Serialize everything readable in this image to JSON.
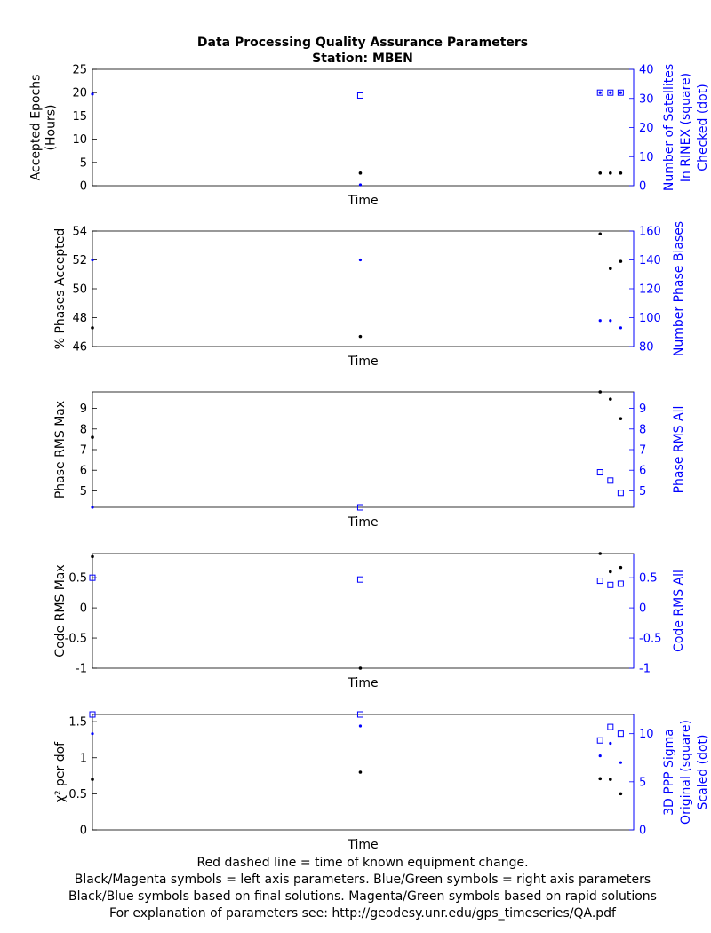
{
  "title_line1": "Data Processing Quality Assurance Parameters",
  "title_line2": "Station: MBEN",
  "colors": {
    "left": "#000000",
    "right": "#0000ff",
    "axis": "#000000"
  },
  "footer": [
    "Red dashed line = time of known equipment change.",
    "Black/Magenta symbols = left axis parameters. Blue/Green symbols = right axis parameters",
    "Black/Blue symbols based on final solutions.  Magenta/Green symbols based on rapid solutions",
    "For explanation of parameters see: http://geodesy.unr.edu/gps_timeseries/QA.pdf"
  ],
  "chart_data": [
    {
      "type": "scatter",
      "xlabel": "Time",
      "xlim": [
        0,
        100
      ],
      "left": {
        "label": [
          "Accepted Epochs",
          "(Hours)"
        ],
        "ylim": [
          0,
          25
        ],
        "ticks": [
          0,
          5,
          10,
          15,
          20,
          25
        ],
        "ticklabels": [
          "0",
          "5",
          "10",
          "15",
          "20",
          "25"
        ],
        "points": [
          {
            "x": 49.5,
            "y": 2.7
          },
          {
            "x": 93.8,
            "y": 2.7
          },
          {
            "x": 95.7,
            "y": 2.7
          },
          {
            "x": 97.6,
            "y": 2.7
          }
        ]
      },
      "right": {
        "label": [
          "Number of Satellites",
          "In RINEX (square)",
          "Checked (dot)"
        ],
        "ylim": [
          0,
          40
        ],
        "ticks": [
          0,
          10,
          20,
          30,
          40
        ],
        "ticklabels": [
          "0",
          "10",
          "20",
          "30",
          "40"
        ],
        "squares": [
          {
            "x": 49.5,
            "y": 31
          },
          {
            "x": 93.8,
            "y": 32
          },
          {
            "x": 95.7,
            "y": 32
          },
          {
            "x": 97.6,
            "y": 32
          }
        ],
        "dots": [
          {
            "x": 0,
            "y": 31.5
          },
          {
            "x": 49.5,
            "y": 0.3
          },
          {
            "x": 93.8,
            "y": 32
          },
          {
            "x": 95.7,
            "y": 32
          },
          {
            "x": 97.6,
            "y": 32
          }
        ]
      }
    },
    {
      "type": "scatter",
      "xlabel": "Time",
      "xlim": [
        0,
        100
      ],
      "left": {
        "label": [
          "% Phases Accepted"
        ],
        "ylim": [
          46,
          54
        ],
        "ticks": [
          46,
          48,
          50,
          52,
          54
        ],
        "ticklabels": [
          "46",
          "48",
          "50",
          "52",
          "54"
        ],
        "points": [
          {
            "x": 0,
            "y": 47.3
          },
          {
            "x": 49.5,
            "y": 46.7
          },
          {
            "x": 93.8,
            "y": 53.8
          },
          {
            "x": 95.7,
            "y": 51.4
          },
          {
            "x": 97.6,
            "y": 51.9
          }
        ]
      },
      "right": {
        "label": [
          "Number Phase Biases"
        ],
        "ylim": [
          80,
          160
        ],
        "ticks": [
          80,
          100,
          120,
          140,
          160
        ],
        "ticklabels": [
          "80",
          "100",
          "120",
          "140",
          "160"
        ],
        "squares": [],
        "dots": [
          {
            "x": 0,
            "y": 140
          },
          {
            "x": 49.5,
            "y": 140
          },
          {
            "x": 93.8,
            "y": 98
          },
          {
            "x": 95.7,
            "y": 98
          },
          {
            "x": 97.6,
            "y": 93
          }
        ]
      }
    },
    {
      "type": "scatter",
      "xlabel": "Time",
      "xlim": [
        0,
        100
      ],
      "left": {
        "label": [
          "Phase RMS Max"
        ],
        "ylim": [
          4.2,
          9.8
        ],
        "ticks": [
          5,
          6,
          7,
          8,
          9
        ],
        "ticklabels": [
          "5",
          "6",
          "7",
          "8",
          "9"
        ],
        "points": [
          {
            "x": 0,
            "y": 7.6
          },
          {
            "x": 93.8,
            "y": 9.8
          },
          {
            "x": 95.7,
            "y": 9.45
          },
          {
            "x": 97.6,
            "y": 8.5
          }
        ]
      },
      "right": {
        "label": [
          "Phase RMS All"
        ],
        "ylim": [
          4.2,
          9.8
        ],
        "ticks": [
          5,
          6,
          7,
          8,
          9
        ],
        "ticklabels": [
          "5",
          "6",
          "7",
          "8",
          "9"
        ],
        "squares": [
          {
            "x": 49.5,
            "y": 4.2
          },
          {
            "x": 93.8,
            "y": 5.9
          },
          {
            "x": 95.7,
            "y": 5.5
          },
          {
            "x": 97.6,
            "y": 4.9
          }
        ],
        "dots": [
          {
            "x": 0,
            "y": 4.2
          }
        ]
      }
    },
    {
      "type": "scatter",
      "xlabel": "Time",
      "xlim": [
        0,
        100
      ],
      "left": {
        "label": [
          "Code RMS Max"
        ],
        "ylim": [
          -1,
          0.9
        ],
        "ticks": [
          -1,
          -0.5,
          0,
          0.5
        ],
        "ticklabels": [
          "-1",
          "-0.5",
          "0",
          "0.5"
        ],
        "points": [
          {
            "x": 0,
            "y": 0.85
          },
          {
            "x": 49.5,
            "y": -1
          },
          {
            "x": 93.8,
            "y": 0.9
          },
          {
            "x": 95.7,
            "y": 0.6
          },
          {
            "x": 97.6,
            "y": 0.67
          }
        ]
      },
      "right": {
        "label": [
          "Code RMS All"
        ],
        "ylim": [
          -1,
          0.9
        ],
        "ticks": [
          -1,
          -0.5,
          0,
          0.5
        ],
        "ticklabels": [
          "-1",
          "-0.5",
          "0",
          "0.5"
        ],
        "squares": [
          {
            "x": 0,
            "y": 0.5
          },
          {
            "x": 49.5,
            "y": 0.47
          },
          {
            "x": 93.8,
            "y": 0.45
          },
          {
            "x": 95.7,
            "y": 0.38
          },
          {
            "x": 97.6,
            "y": 0.4
          }
        ],
        "dots": []
      }
    },
    {
      "type": "scatter",
      "xlabel": "Time",
      "xlim": [
        0,
        100
      ],
      "left": {
        "label": [
          "χ² per dof"
        ],
        "ylim": [
          0,
          1.6
        ],
        "ticks": [
          0,
          0.5,
          1,
          1.5
        ],
        "ticklabels": [
          "0",
          "0.5",
          "1",
          "1.5"
        ],
        "points": [
          {
            "x": 0,
            "y": 0.7
          },
          {
            "x": 49.5,
            "y": 0.8
          },
          {
            "x": 93.8,
            "y": 0.71
          },
          {
            "x": 95.7,
            "y": 0.7
          },
          {
            "x": 97.6,
            "y": 0.5
          }
        ]
      },
      "right": {
        "label": [
          "3D PPP Sigma",
          "Original (square)",
          "Scaled (dot)"
        ],
        "ylim": [
          0,
          12
        ],
        "ticks": [
          0,
          5,
          10
        ],
        "ticklabels": [
          "0",
          "5",
          "10"
        ],
        "squares": [
          {
            "x": 0,
            "y": 12
          },
          {
            "x": 49.5,
            "y": 12
          },
          {
            "x": 93.8,
            "y": 9.3
          },
          {
            "x": 95.7,
            "y": 10.7
          },
          {
            "x": 97.6,
            "y": 10
          }
        ],
        "dots": [
          {
            "x": 0,
            "y": 10
          },
          {
            "x": 49.5,
            "y": 10.8
          },
          {
            "x": 93.8,
            "y": 7.7
          },
          {
            "x": 95.7,
            "y": 9
          },
          {
            "x": 97.6,
            "y": 7
          }
        ]
      }
    }
  ]
}
